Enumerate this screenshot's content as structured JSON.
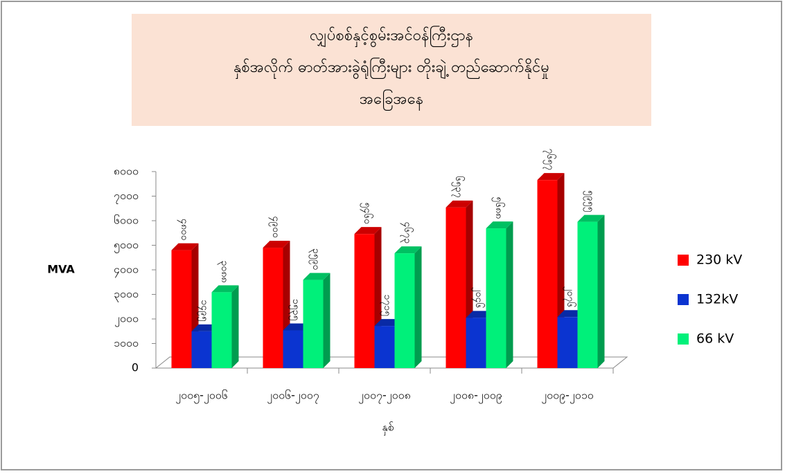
{
  "chart_data": {
    "type": "bar3d",
    "title": [
      "လျှပ်စစ်နှင့်စွမ်းအင်ဝန်ကြီးဌာန",
      "နှစ်အလိုက် ဓာတ်အားခွဲရုံကြီးများ တိုးချဲ့ တည်ဆောက်နိုင်မှု",
      "အခြေအနေ"
    ],
    "y_label": "MVA",
    "x_label": "နှစ်",
    "categories": [
      "၂၀၀၅-၂၀၀၆",
      "၂၀၀၆-၂၀၀၇",
      "၂၀၀၇-၂၀၀၈",
      "၂၀၀၈-၂၀၀၉",
      "၂၀၀၉-၂၀၁၀"
    ],
    "series": [
      {
        "name": "230 kV",
        "color": "#ff0000",
        "values": [
          4800,
          4900,
          5460,
          6537,
          7657
        ],
        "value_labels": [
          "၄၈၀၀",
          "၄၉၀၀",
          "၅၄၆၀",
          "၆၅၃၇",
          "၇၆၅၇"
        ]
      },
      {
        "name": "132kV",
        "color": "#0b34d0",
        "values": [
          1495,
          1535,
          1715,
          2046,
          2076
        ],
        "value_labels": [
          "၁၄၉၅",
          "၁၅၃၅",
          "၁၇၁၅",
          "၂၀၄၆",
          "၂၀၇၆"
        ]
      },
      {
        "name": "66 kV",
        "color": "#00f07a",
        "values": [
          3088,
          3590,
          4673,
          5688,
          5955
        ],
        "value_labels": [
          "၃၀၈၈",
          "၃၅၉၀",
          "၄၆၇၃",
          "၅၆၈၈",
          "၅၉၅၅"
        ]
      }
    ],
    "ylim": [
      0,
      8000
    ],
    "yticks": [
      0,
      {
        "value": 1000,
        "label": "၁၀၀၀"
      },
      {
        "value": 2000,
        "label": "၂၀၀၀"
      },
      {
        "value": 3000,
        "label": "၃၀၀၀"
      },
      {
        "value": 4000,
        "label": "၄၀၀၀"
      },
      {
        "value": 5000,
        "label": "၅၀၀၀"
      },
      {
        "value": 6000,
        "label": "၆၀၀၀"
      },
      {
        "value": 7000,
        "label": "၇၀၀၀"
      },
      {
        "value": 8000,
        "label": "၈၀၀၀"
      }
    ],
    "legend": "right"
  }
}
